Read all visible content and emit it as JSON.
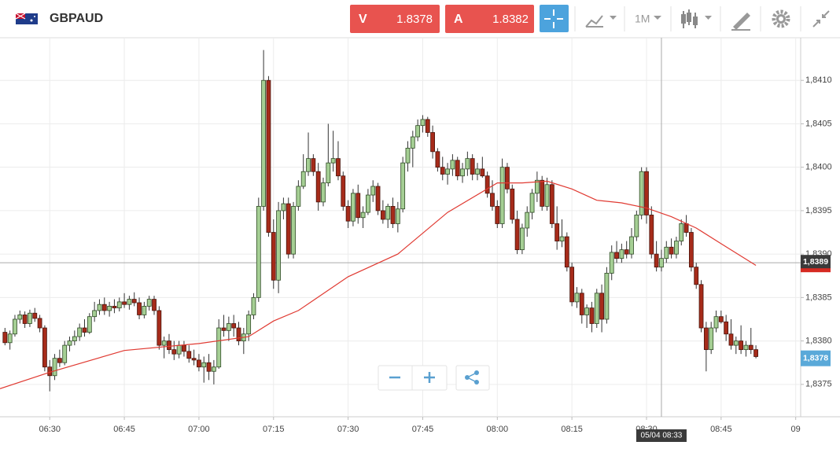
{
  "header": {
    "symbol": "GBPAUD",
    "bid": {
      "label": "V",
      "price": "1.8378"
    },
    "ask": {
      "label": "A",
      "price": "1.8382"
    },
    "timeframe": "1M"
  },
  "chart_data": {
    "type": "candlestick",
    "x": [
      "06:21",
      "06:22",
      "06:23",
      "06:24",
      "06:25",
      "06:26",
      "06:27",
      "06:28",
      "06:29",
      "06:30",
      "06:31",
      "06:32",
      "06:33",
      "06:34",
      "06:35",
      "06:36",
      "06:37",
      "06:38",
      "06:39",
      "06:40",
      "06:41",
      "06:42",
      "06:43",
      "06:44",
      "06:45",
      "06:46",
      "06:47",
      "06:48",
      "06:49",
      "06:50",
      "06:51",
      "06:52",
      "06:53",
      "06:54",
      "06:55",
      "06:56",
      "06:57",
      "06:58",
      "06:59",
      "07:00",
      "07:01",
      "07:02",
      "07:03",
      "07:04",
      "07:05",
      "07:06",
      "07:07",
      "07:08",
      "07:09",
      "07:10",
      "07:11",
      "07:12",
      "07:13",
      "07:14",
      "07:15",
      "07:16",
      "07:17",
      "07:18",
      "07:19",
      "07:20",
      "07:21",
      "07:22",
      "07:23",
      "07:24",
      "07:25",
      "07:26",
      "07:27",
      "07:28",
      "07:29",
      "07:30",
      "07:31",
      "07:32",
      "07:33",
      "07:34",
      "07:35",
      "07:36",
      "07:37",
      "07:38",
      "07:39",
      "07:40",
      "07:41",
      "07:42",
      "07:43",
      "07:44",
      "07:45",
      "07:46",
      "07:47",
      "07:48",
      "07:49",
      "07:50",
      "07:51",
      "07:52",
      "07:53",
      "07:54",
      "07:55",
      "07:56",
      "07:57",
      "07:58",
      "07:59",
      "08:00",
      "08:01",
      "08:02",
      "08:03",
      "08:04",
      "08:05",
      "08:06",
      "08:07",
      "08:08",
      "08:09",
      "08:10",
      "08:11",
      "08:12",
      "08:13",
      "08:14",
      "08:15",
      "08:16",
      "08:17",
      "08:18",
      "08:19",
      "08:20",
      "08:21",
      "08:22",
      "08:23",
      "08:24",
      "08:25",
      "08:26",
      "08:27",
      "08:28",
      "08:29",
      "08:30",
      "08:31",
      "08:32",
      "08:33",
      "08:34",
      "08:35",
      "08:36",
      "08:37",
      "08:38",
      "08:39",
      "08:40",
      "08:41",
      "08:42",
      "08:43",
      "08:44",
      "08:45",
      "08:46",
      "08:47",
      "08:48",
      "08:49",
      "08:50",
      "08:51",
      "08:52"
    ],
    "candles": [
      [
        1.8381,
        1.83815,
        1.83795,
        1.83798
      ],
      [
        1.83798,
        1.83812,
        1.8379,
        1.83808
      ],
      [
        1.83808,
        1.8383,
        1.83805,
        1.83825
      ],
      [
        1.83825,
        1.83835,
        1.8382,
        1.8383
      ],
      [
        1.8383,
        1.83834,
        1.83815,
        1.8382
      ],
      [
        1.8382,
        1.83836,
        1.83816,
        1.83832
      ],
      [
        1.83832,
        1.83838,
        1.83822,
        1.83826
      ],
      [
        1.83826,
        1.8383,
        1.8381,
        1.83815
      ],
      [
        1.83815,
        1.83818,
        1.83765,
        1.8377
      ],
      [
        1.8377,
        1.83778,
        1.83742,
        1.8376
      ],
      [
        1.8376,
        1.83785,
        1.83755,
        1.8378
      ],
      [
        1.8378,
        1.8379,
        1.8377,
        1.83775
      ],
      [
        1.83775,
        1.838,
        1.83772,
        1.83795
      ],
      [
        1.83795,
        1.83805,
        1.83788,
        1.838
      ],
      [
        1.838,
        1.83812,
        1.83795,
        1.83805
      ],
      [
        1.83805,
        1.8382,
        1.838,
        1.83815
      ],
      [
        1.83815,
        1.83825,
        1.83805,
        1.8381
      ],
      [
        1.8381,
        1.83832,
        1.83808,
        1.83828
      ],
      [
        1.83828,
        1.83845,
        1.83822,
        1.83835
      ],
      [
        1.83835,
        1.83848,
        1.8383,
        1.83842
      ],
      [
        1.83842,
        1.8385,
        1.8383,
        1.83835
      ],
      [
        1.83835,
        1.83845,
        1.83828,
        1.8384
      ],
      [
        1.8384,
        1.83848,
        1.83832,
        1.83838
      ],
      [
        1.83838,
        1.8385,
        1.83834,
        1.83845
      ],
      [
        1.83845,
        1.83855,
        1.83838,
        1.83842
      ],
      [
        1.83842,
        1.83852,
        1.83836,
        1.83848
      ],
      [
        1.83848,
        1.83856,
        1.8384,
        1.83844
      ],
      [
        1.83844,
        1.8385,
        1.83825,
        1.8383
      ],
      [
        1.8383,
        1.83845,
        1.83826,
        1.8384
      ],
      [
        1.8384,
        1.83852,
        1.83835,
        1.83848
      ],
      [
        1.83848,
        1.83852,
        1.8383,
        1.83835
      ],
      [
        1.83835,
        1.8384,
        1.8379,
        1.83795
      ],
      [
        1.83795,
        1.83805,
        1.8378,
        1.838
      ],
      [
        1.838,
        1.83808,
        1.83785,
        1.8379
      ],
      [
        1.8379,
        1.838,
        1.83778,
        1.83785
      ],
      [
        1.83785,
        1.838,
        1.8378,
        1.83795
      ],
      [
        1.83795,
        1.838,
        1.83782,
        1.83788
      ],
      [
        1.83788,
        1.83795,
        1.83775,
        1.8378
      ],
      [
        1.8378,
        1.8379,
        1.83772,
        1.83778
      ],
      [
        1.83778,
        1.83785,
        1.83765,
        1.8377
      ],
      [
        1.8377,
        1.83782,
        1.83752,
        1.83775
      ],
      [
        1.83775,
        1.83785,
        1.83755,
        1.83765
      ],
      [
        1.83765,
        1.83778,
        1.8375,
        1.8377
      ],
      [
        1.8377,
        1.83825,
        1.83768,
        1.83815
      ],
      [
        1.83815,
        1.8383,
        1.83805,
        1.83812
      ],
      [
        1.83812,
        1.83828,
        1.838,
        1.8382
      ],
      [
        1.8382,
        1.8383,
        1.83805,
        1.83815
      ],
      [
        1.83815,
        1.83822,
        1.83795,
        1.838
      ],
      [
        1.838,
        1.83815,
        1.83785,
        1.83808
      ],
      [
        1.83808,
        1.83835,
        1.838,
        1.8383
      ],
      [
        1.8383,
        1.83855,
        1.83825,
        1.8385
      ],
      [
        1.8385,
        1.83965,
        1.83845,
        1.83955
      ],
      [
        1.83955,
        1.84135,
        1.8395,
        1.841
      ],
      [
        1.841,
        1.84105,
        1.8392,
        1.83925
      ],
      [
        1.83925,
        1.8394,
        1.8386,
        1.8387
      ],
      [
        1.8387,
        1.8396,
        1.83855,
        1.8395
      ],
      [
        1.8395,
        1.83965,
        1.8394,
        1.83958
      ],
      [
        1.83958,
        1.83965,
        1.83895,
        1.839
      ],
      [
        1.839,
        1.8396,
        1.83895,
        1.83955
      ],
      [
        1.83955,
        1.83985,
        1.8395,
        1.83978
      ],
      [
        1.83978,
        1.84015,
        1.83975,
        1.83995
      ],
      [
        1.83995,
        1.8404,
        1.8399,
        1.8401
      ],
      [
        1.8401,
        1.84015,
        1.8399,
        1.83995
      ],
      [
        1.83995,
        1.84005,
        1.8395,
        1.8396
      ],
      [
        1.8396,
        1.83988,
        1.83955,
        1.83982
      ],
      [
        1.83982,
        1.8405,
        1.83978,
        1.84005
      ],
      [
        1.84005,
        1.84042,
        1.83995,
        1.8401
      ],
      [
        1.8401,
        1.8403,
        1.83985,
        1.8399
      ],
      [
        1.8399,
        1.83995,
        1.8395,
        1.83955
      ],
      [
        1.83955,
        1.83962,
        1.8393,
        1.83938
      ],
      [
        1.83938,
        1.83975,
        1.83932,
        1.8397
      ],
      [
        1.8397,
        1.8398,
        1.83935,
        1.83942
      ],
      [
        1.83942,
        1.83955,
        1.8393,
        1.83948
      ],
      [
        1.83948,
        1.83975,
        1.83945,
        1.83968
      ],
      [
        1.83968,
        1.83985,
        1.8396,
        1.83978
      ],
      [
        1.83978,
        1.83982,
        1.83945,
        1.8395
      ],
      [
        1.8395,
        1.83962,
        1.83935,
        1.8394
      ],
      [
        1.8394,
        1.83958,
        1.8393,
        1.83955
      ],
      [
        1.83955,
        1.83965,
        1.8393,
        1.83935
      ],
      [
        1.83935,
        1.8396,
        1.83925,
        1.83952
      ],
      [
        1.83952,
        1.84012,
        1.83948,
        1.84005
      ],
      [
        1.84005,
        1.8403,
        1.83995,
        1.84022
      ],
      [
        1.84022,
        1.84042,
        1.84,
        1.84035
      ],
      [
        1.84035,
        1.84055,
        1.8403,
        1.84048
      ],
      [
        1.84048,
        1.8406,
        1.8404,
        1.84055
      ],
      [
        1.84055,
        1.84058,
        1.84035,
        1.8404
      ],
      [
        1.8404,
        1.84048,
        1.8401,
        1.84018
      ],
      [
        1.84018,
        1.84022,
        1.83995,
        1.84
      ],
      [
        1.84,
        1.84012,
        1.83985,
        1.83992
      ],
      [
        1.83992,
        1.84005,
        1.8398,
        1.83998
      ],
      [
        1.83998,
        1.84015,
        1.8399,
        1.84008
      ],
      [
        1.84008,
        1.84012,
        1.83985,
        1.8399
      ],
      [
        1.8399,
        1.84005,
        1.83982,
        1.83998
      ],
      [
        1.83998,
        1.84018,
        1.8399,
        1.8401
      ],
      [
        1.8401,
        1.84015,
        1.83985,
        1.83992
      ],
      [
        1.83992,
        1.84005,
        1.83985,
        1.83998
      ],
      [
        1.83998,
        1.84012,
        1.83988,
        1.8399
      ],
      [
        1.8399,
        1.83995,
        1.83965,
        1.8397
      ],
      [
        1.8397,
        1.83985,
        1.8395,
        1.83955
      ],
      [
        1.83955,
        1.83962,
        1.8393,
        1.83935
      ],
      [
        1.83935,
        1.8401,
        1.8393,
        1.84
      ],
      [
        1.84,
        1.84005,
        1.8397,
        1.83975
      ],
      [
        1.83975,
        1.8398,
        1.83935,
        1.8394
      ],
      [
        1.8394,
        1.8395,
        1.839,
        1.83905
      ],
      [
        1.83905,
        1.83935,
        1.839,
        1.8393
      ],
      [
        1.8393,
        1.83955,
        1.8392,
        1.83948
      ],
      [
        1.83948,
        1.83975,
        1.8394,
        1.8397
      ],
      [
        1.8397,
        1.83995,
        1.8396,
        1.83985
      ],
      [
        1.83985,
        1.8399,
        1.8395,
        1.83955
      ],
      [
        1.83955,
        1.83988,
        1.8395,
        1.8398
      ],
      [
        1.8398,
        1.83985,
        1.8393,
        1.83935
      ],
      [
        1.83935,
        1.83955,
        1.83905,
        1.83915
      ],
      [
        1.83915,
        1.8394,
        1.83908,
        1.8392
      ],
      [
        1.8392,
        1.83925,
        1.8388,
        1.83885
      ],
      [
        1.83885,
        1.8389,
        1.8384,
        1.83845
      ],
      [
        1.83845,
        1.83862,
        1.83838,
        1.83855
      ],
      [
        1.83855,
        1.8386,
        1.8382,
        1.8383
      ],
      [
        1.8383,
        1.83842,
        1.83815,
        1.83838
      ],
      [
        1.83838,
        1.83845,
        1.8381,
        1.8382
      ],
      [
        1.8382,
        1.8386,
        1.83815,
        1.83855
      ],
      [
        1.83855,
        1.83865,
        1.8381,
        1.83825
      ],
      [
        1.83825,
        1.83885,
        1.8382,
        1.83878
      ],
      [
        1.83878,
        1.8391,
        1.8387,
        1.83902
      ],
      [
        1.83902,
        1.83915,
        1.8389,
        1.83895
      ],
      [
        1.83895,
        1.83912,
        1.8389,
        1.83905
      ],
      [
        1.83905,
        1.83915,
        1.83895,
        1.839
      ],
      [
        1.839,
        1.8393,
        1.83895,
        1.8392
      ],
      [
        1.8392,
        1.8395,
        1.83915,
        1.83945
      ],
      [
        1.83945,
        1.84,
        1.8394,
        1.83995
      ],
      [
        1.83995,
        1.84,
        1.83935,
        1.83945
      ],
      [
        1.83945,
        1.83955,
        1.83895,
        1.839
      ],
      [
        1.839,
        1.83915,
        1.8388,
        1.83885
      ],
      [
        1.83885,
        1.83905,
        1.8388,
        1.83895
      ],
      [
        1.83895,
        1.83915,
        1.8389,
        1.83908
      ],
      [
        1.83908,
        1.83918,
        1.83895,
        1.839
      ],
      [
        1.839,
        1.8392,
        1.83895,
        1.83915
      ],
      [
        1.83915,
        1.8394,
        1.8391,
        1.83935
      ],
      [
        1.83935,
        1.83945,
        1.8392,
        1.83925
      ],
      [
        1.83925,
        1.8393,
        1.8388,
        1.83885
      ],
      [
        1.83885,
        1.8389,
        1.8386,
        1.83865
      ],
      [
        1.83865,
        1.8387,
        1.8381,
        1.83815
      ],
      [
        1.83815,
        1.83822,
        1.83765,
        1.8379
      ],
      [
        1.8379,
        1.83822,
        1.83785,
        1.83815
      ],
      [
        1.83815,
        1.83835,
        1.8381,
        1.83828
      ],
      [
        1.83828,
        1.83835,
        1.8382,
        1.83822
      ],
      [
        1.83822,
        1.8383,
        1.838,
        1.83808
      ],
      [
        1.83808,
        1.83825,
        1.8379,
        1.83795
      ],
      [
        1.83795,
        1.83805,
        1.83785,
        1.838
      ],
      [
        1.838,
        1.83818,
        1.83785,
        1.8379
      ],
      [
        1.8379,
        1.838,
        1.83782,
        1.83795
      ],
      [
        1.83795,
        1.83815,
        1.83785,
        1.8379
      ],
      [
        1.8379,
        1.83795,
        1.8378,
        1.83782
      ]
    ],
    "up_color": "#a5cf94",
    "down_color": "#a62b1a",
    "moving_average": {
      "color": "#e03a32",
      "x": [
        "06:20",
        "06:30",
        "06:45",
        "07:00",
        "07:10",
        "07:15",
        "07:20",
        "07:30",
        "07:40",
        "07:50",
        "08:00",
        "08:05",
        "08:10",
        "08:15",
        "08:20",
        "08:25",
        "08:30",
        "08:35",
        "08:40",
        "08:45",
        "08:52"
      ],
      "values": [
        1.83745,
        1.83764,
        1.83789,
        1.83797,
        1.83805,
        1.83823,
        1.83835,
        1.83874,
        1.839,
        1.83948,
        1.83982,
        1.83982,
        1.83984,
        1.83975,
        1.83962,
        1.83959,
        1.83953,
        1.83943,
        1.8393,
        1.83912,
        1.83887
      ]
    },
    "xlim": [
      "06:20",
      "09:01"
    ],
    "xticks": [
      "06:30",
      "06:45",
      "07:00",
      "07:15",
      "07:30",
      "07:45",
      "08:00",
      "08:15",
      "08:30",
      "08:45",
      {
        "value": "09:00",
        "label": "09"
      }
    ],
    "ylim": [
      1.8371,
      1.8415
    ],
    "yticks": [
      {
        "value": 1.8375,
        "label": "1,8375"
      },
      {
        "value": 1.838,
        "label": "1,8380"
      },
      {
        "value": 1.8385,
        "label": "1,8385"
      },
      {
        "value": 1.839,
        "label": "1,8390"
      },
      {
        "value": 1.8395,
        "label": "1,8395"
      },
      {
        "value": 1.84,
        "label": "1,8400"
      },
      {
        "value": 1.8405,
        "label": "1,8405"
      },
      {
        "value": 1.841,
        "label": "1,8410"
      }
    ],
    "grid": true,
    "crosshair": {
      "time": {
        "value": "08:33",
        "label": "05/04 08:33"
      },
      "price": {
        "value": 1.8389,
        "label": "1,8389"
      }
    },
    "last_price": {
      "value": 1.8378,
      "label": "1,8378"
    }
  }
}
